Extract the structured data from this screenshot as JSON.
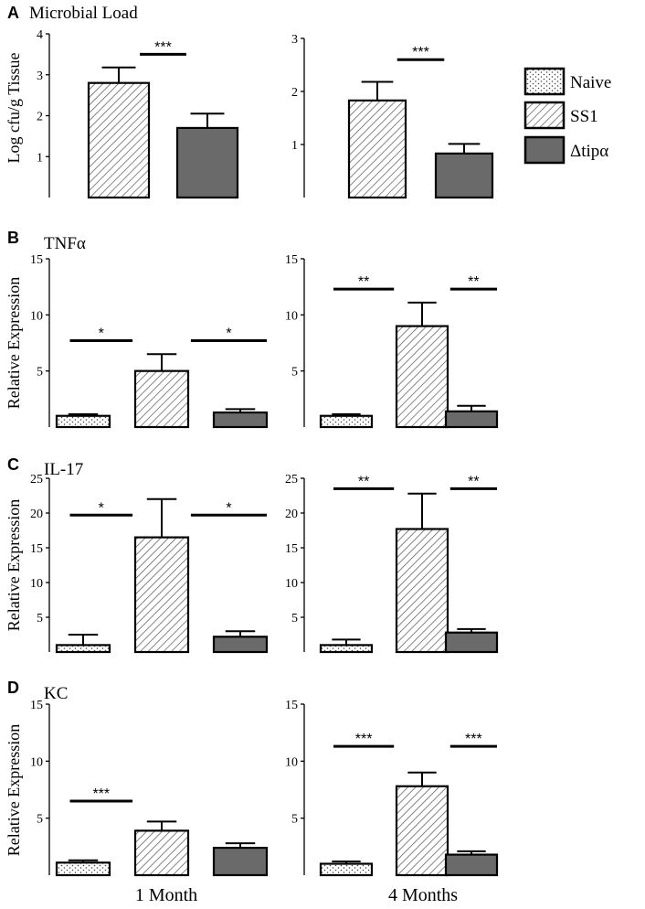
{
  "colors": {
    "naive_fill": "#ffffff",
    "ss1_fill": "#ffffff",
    "dtipa_fill": "#6a6a6a",
    "stroke": "#000000",
    "hatch": "#555555"
  },
  "legend": {
    "entries": [
      "Naive",
      "SS1",
      "Δtipα"
    ]
  },
  "x_labels": {
    "left": "1 Month",
    "right": "4 Months"
  },
  "chart_data": [
    {
      "type": "bar",
      "panel_letter": "A",
      "panel_title": "Microbial Load",
      "column": "1 Month",
      "ylabel": "Log cfu/g Tissue",
      "ylim": [
        0,
        4
      ],
      "yticks": [
        "1",
        "2",
        "3",
        "4"
      ],
      "categories": [
        "SS1",
        "Δtipα"
      ],
      "values": [
        2.8,
        1.7
      ],
      "errors": [
        0.38,
        0.35
      ],
      "significance": [
        {
          "label": "***",
          "from": 0,
          "to": 1,
          "y": 3.5
        }
      ]
    },
    {
      "type": "bar",
      "panel_letter": "",
      "panel_title": "",
      "column": "4 Months",
      "ylabel": "",
      "ylim": [
        0,
        3
      ],
      "yticks": [
        "1",
        "2",
        "3"
      ],
      "categories": [
        "SS1",
        "Δtipα"
      ],
      "values": [
        1.83,
        0.83
      ],
      "errors": [
        0.35,
        0.18
      ],
      "significance": [
        {
          "label": "***",
          "from": 0,
          "to": 1,
          "y": 2.6
        }
      ]
    },
    {
      "type": "bar",
      "panel_letter": "B",
      "panel_title": "TNFα",
      "column": "1 Month",
      "ylabel": "Relative Expression",
      "ylim": [
        0,
        15
      ],
      "yticks": [
        "5",
        "10",
        "15"
      ],
      "categories": [
        "Naive",
        "SS1",
        "Δtipα"
      ],
      "values": [
        1.0,
        5.0,
        1.3
      ],
      "errors": [
        0.15,
        1.5,
        0.3
      ],
      "significance": [
        {
          "label": "*",
          "from": 0,
          "to": 1,
          "y": 7.7
        },
        {
          "label": "*",
          "from": 1,
          "to": 2,
          "y": 7.7
        }
      ]
    },
    {
      "type": "bar",
      "panel_letter": "",
      "panel_title": "",
      "column": "4 Months",
      "ylabel": "",
      "ylim": [
        0,
        15
      ],
      "yticks": [
        "5",
        "10",
        "15"
      ],
      "categories": [
        "Naive",
        "SS1",
        "Δtipα"
      ],
      "values": [
        1.0,
        9.0,
        1.4
      ],
      "errors": [
        0.15,
        2.1,
        0.5
      ],
      "significance": [
        {
          "label": "**",
          "from": 0,
          "to": 1,
          "y": 12.3
        },
        {
          "label": "**",
          "from": 1,
          "to": 2,
          "y": 12.3
        }
      ]
    },
    {
      "type": "bar",
      "panel_letter": "C",
      "panel_title": "IL-17",
      "column": "1 Month",
      "ylabel": "Relative Expression",
      "ylim": [
        0,
        25
      ],
      "yticks": [
        "5",
        "10",
        "15",
        "20",
        "25"
      ],
      "categories": [
        "Naive",
        "SS1",
        "Δtipα"
      ],
      "values": [
        1.0,
        16.5,
        2.2
      ],
      "errors": [
        1.5,
        5.5,
        0.8
      ],
      "significance": [
        {
          "label": "*",
          "from": 0,
          "to": 1,
          "y": 19.7
        },
        {
          "label": "*",
          "from": 1,
          "to": 2,
          "y": 19.7
        }
      ]
    },
    {
      "type": "bar",
      "panel_letter": "",
      "panel_title": "",
      "column": "4 Months",
      "ylabel": "",
      "ylim": [
        0,
        25
      ],
      "yticks": [
        "5",
        "10",
        "15",
        "20",
        "25"
      ],
      "categories": [
        "Naive",
        "SS1",
        "Δtipα"
      ],
      "values": [
        1.0,
        17.7,
        2.8
      ],
      "errors": [
        0.8,
        5.1,
        0.5
      ],
      "significance": [
        {
          "label": "**",
          "from": 0,
          "to": 1,
          "y": 23.5
        },
        {
          "label": "**",
          "from": 1,
          "to": 2,
          "y": 23.5
        }
      ]
    },
    {
      "type": "bar",
      "panel_letter": "D",
      "panel_title": "KC",
      "column": "1 Month",
      "ylabel": "Relative Expression",
      "ylim": [
        0,
        15
      ],
      "yticks": [
        "5",
        "10",
        "15"
      ],
      "categories": [
        "Naive",
        "SS1",
        "Δtipα"
      ],
      "values": [
        1.1,
        3.9,
        2.4
      ],
      "errors": [
        0.2,
        0.8,
        0.4
      ],
      "significance": [
        {
          "label": "***",
          "from": 0,
          "to": 1,
          "y": 6.5
        }
      ]
    },
    {
      "type": "bar",
      "panel_letter": "",
      "panel_title": "",
      "column": "4 Months",
      "ylabel": "",
      "ylim": [
        0,
        15
      ],
      "yticks": [
        "5",
        "10",
        "15"
      ],
      "categories": [
        "Naive",
        "SS1",
        "Δtipα"
      ],
      "values": [
        1.0,
        7.8,
        1.8
      ],
      "errors": [
        0.2,
        1.2,
        0.3
      ],
      "significance": [
        {
          "label": "***",
          "from": 0,
          "to": 1,
          "y": 11.3
        },
        {
          "label": "***",
          "from": 1,
          "to": 2,
          "y": 11.3
        }
      ]
    }
  ]
}
